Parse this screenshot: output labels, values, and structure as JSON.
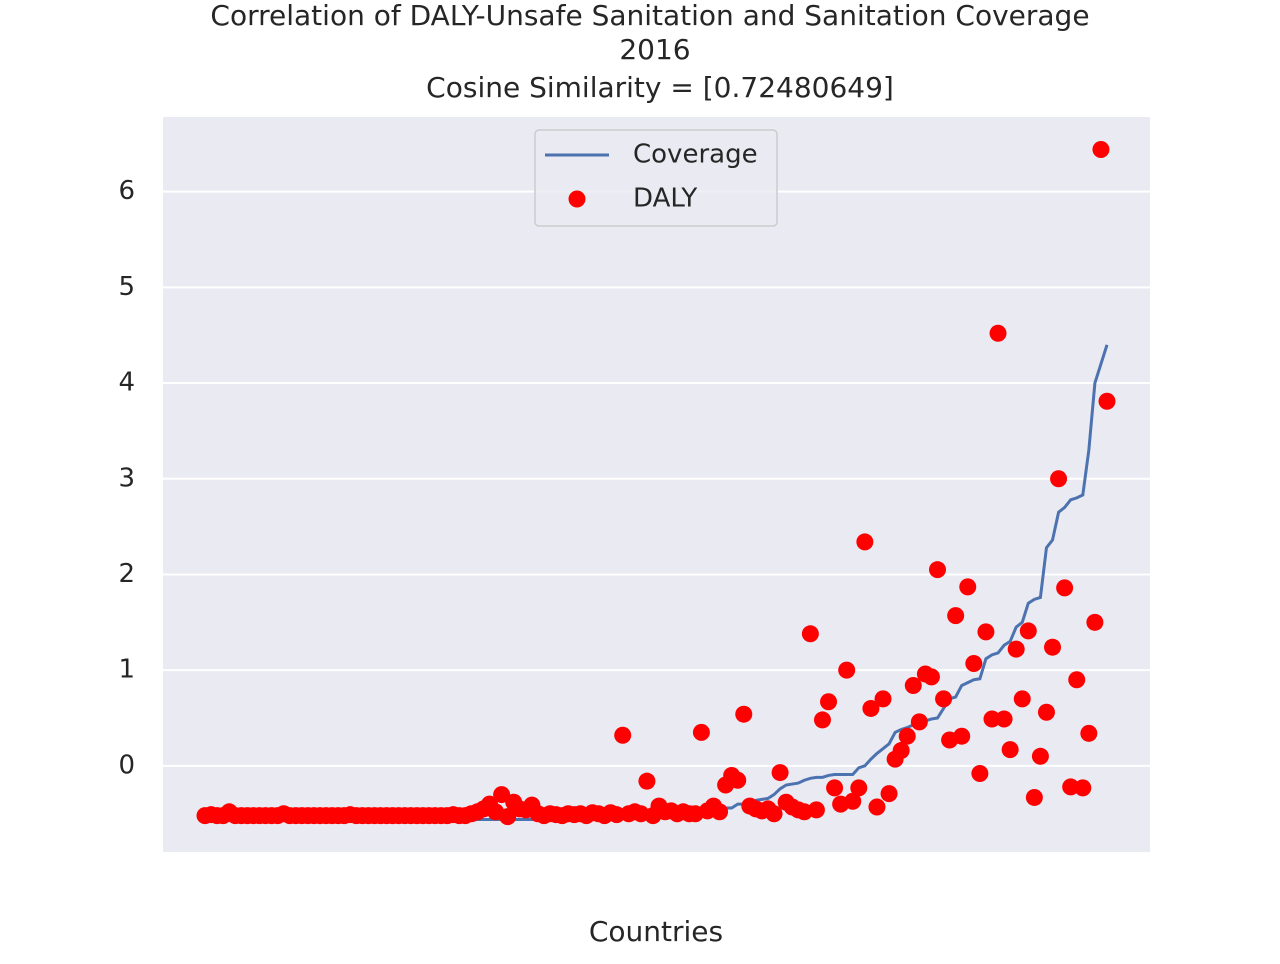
{
  "chart_data": {
    "type": "combo",
    "title": [
      "Correlation of DALY-Unsafe Sanitation and Sanitation Coverage",
      "2016",
      "Cosine Similarity = [0.72480649]"
    ],
    "xlabel": "Countries",
    "ylim": [
      -0.9,
      6.78
    ],
    "yticks": [
      0,
      1,
      2,
      3,
      4,
      5,
      6
    ],
    "grid": true,
    "legend": "upper center",
    "series": [
      {
        "name": "Coverage",
        "kind": "line",
        "color": "#4c72b0",
        "values": [
          -0.57,
          -0.57,
          -0.57,
          -0.57,
          -0.57,
          -0.57,
          -0.57,
          -0.57,
          -0.57,
          -0.57,
          -0.57,
          -0.57,
          -0.57,
          -0.57,
          -0.57,
          -0.57,
          -0.57,
          -0.57,
          -0.57,
          -0.57,
          -0.57,
          -0.57,
          -0.57,
          -0.57,
          -0.57,
          -0.57,
          -0.57,
          -0.57,
          -0.57,
          -0.57,
          -0.57,
          -0.57,
          -0.57,
          -0.57,
          -0.57,
          -0.57,
          -0.57,
          -0.57,
          -0.57,
          -0.57,
          -0.57,
          -0.57,
          -0.57,
          -0.57,
          -0.57,
          -0.56,
          -0.56,
          -0.56,
          -0.56,
          -0.56,
          -0.56,
          -0.56,
          -0.56,
          -0.56,
          -0.56,
          -0.56,
          -0.56,
          -0.56,
          -0.56,
          -0.56,
          -0.55,
          -0.55,
          -0.55,
          -0.55,
          -0.55,
          -0.55,
          -0.55,
          -0.55,
          -0.55,
          -0.55,
          -0.54,
          -0.54,
          -0.53,
          -0.53,
          -0.52,
          -0.52,
          -0.52,
          -0.51,
          -0.51,
          -0.51,
          -0.5,
          -0.5,
          -0.49,
          -0.46,
          -0.45,
          -0.45,
          -0.44,
          -0.44,
          -0.4,
          -0.4,
          -0.39,
          -0.36,
          -0.35,
          -0.34,
          -0.3,
          -0.24,
          -0.2,
          -0.19,
          -0.18,
          -0.15,
          -0.13,
          -0.12,
          -0.12,
          -0.1,
          -0.09,
          -0.09,
          -0.09,
          -0.09,
          -0.02,
          0,
          0.07,
          0.13,
          0.18,
          0.23,
          0.35,
          0.38,
          0.4,
          0.43,
          0.45,
          0.47,
          0.49,
          0.5,
          0.6,
          0.7,
          0.72,
          0.84,
          0.87,
          0.9,
          0.91,
          1.12,
          1.16,
          1.18,
          1.26,
          1.3,
          1.45,
          1.5,
          1.7,
          1.74,
          1.76,
          2.28,
          2.36,
          2.65,
          2.7,
          2.78,
          2.8,
          2.83,
          3.3,
          4.0,
          4.2,
          4.4
        ]
      },
      {
        "name": "DALY",
        "kind": "scatter",
        "color": "#ff0000",
        "values": [
          -0.52,
          -0.51,
          -0.52,
          -0.52,
          -0.48,
          -0.52,
          -0.52,
          -0.52,
          -0.52,
          -0.52,
          -0.52,
          -0.52,
          -0.52,
          -0.5,
          -0.52,
          -0.52,
          -0.52,
          -0.52,
          -0.52,
          -0.52,
          -0.52,
          -0.52,
          -0.52,
          -0.52,
          -0.51,
          -0.52,
          -0.52,
          -0.52,
          -0.52,
          -0.52,
          -0.52,
          -0.52,
          -0.52,
          -0.52,
          -0.52,
          -0.52,
          -0.52,
          -0.52,
          -0.52,
          -0.52,
          -0.52,
          -0.51,
          -0.52,
          -0.52,
          -0.5,
          -0.48,
          -0.45,
          -0.4,
          -0.48,
          -0.3,
          -0.53,
          -0.38,
          -0.45,
          -0.46,
          -0.41,
          -0.5,
          -0.52,
          -0.5,
          -0.51,
          -0.52,
          -0.5,
          -0.51,
          -0.5,
          -0.52,
          -0.49,
          -0.5,
          -0.52,
          -0.49,
          -0.51,
          0.32,
          -0.5,
          -0.48,
          -0.5,
          -0.16,
          -0.52,
          -0.42,
          -0.48,
          -0.47,
          -0.5,
          -0.48,
          -0.5,
          -0.5,
          0.35,
          -0.47,
          -0.42,
          -0.48,
          -0.2,
          -0.1,
          -0.15,
          0.54,
          -0.42,
          -0.45,
          -0.47,
          -0.45,
          -0.5,
          -0.07,
          -0.38,
          -0.43,
          -0.46,
          -0.48,
          1.38,
          -0.46,
          0.48,
          0.67,
          -0.23,
          -0.4,
          1.0,
          -0.37,
          -0.23,
          2.34,
          0.6,
          -0.43,
          0.7,
          -0.29,
          0.07,
          0.16,
          0.31,
          0.84,
          0.46,
          0.96,
          0.93,
          2.05,
          0.7,
          0.27,
          1.57,
          0.31,
          1.87,
          1.07,
          -0.08,
          1.4,
          0.49,
          4.52,
          0.49,
          0.17,
          1.22,
          0.7,
          1.41,
          -0.33,
          0.1,
          0.56,
          1.24,
          3.0,
          1.86,
          -0.22,
          0.9,
          -0.23,
          0.34,
          1.5,
          6.44,
          3.81
        ]
      }
    ]
  }
}
